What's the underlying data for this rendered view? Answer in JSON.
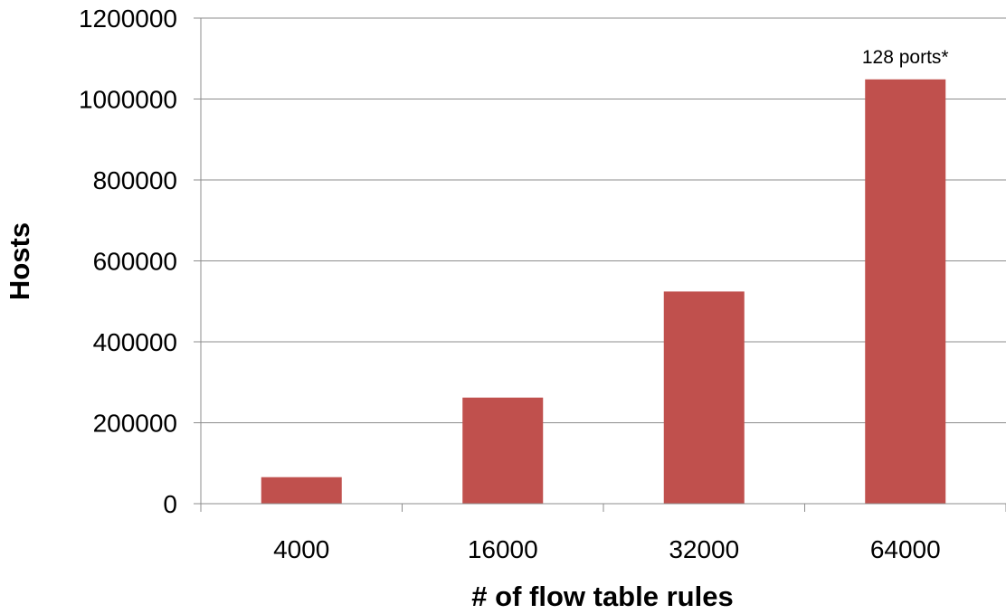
{
  "chart_data": {
    "type": "bar",
    "categories": [
      "4000",
      "16000",
      "32000",
      "64000"
    ],
    "values": [
      65536,
      262144,
      524288,
      1048576
    ],
    "xlabel": "# of flow table rules",
    "ylabel": "Hosts",
    "ylim": [
      0,
      1200000
    ],
    "yticks": [
      0,
      200000,
      400000,
      600000,
      800000,
      1000000,
      1200000
    ],
    "ytick_labels": [
      "0",
      "200000",
      "400000",
      "600000",
      "800000",
      "1000000",
      "1200000"
    ],
    "grid": true,
    "legend": "none",
    "bar_color": "#c0504d",
    "annotations": [
      {
        "category": "64000",
        "text": "128 ports*"
      }
    ]
  }
}
